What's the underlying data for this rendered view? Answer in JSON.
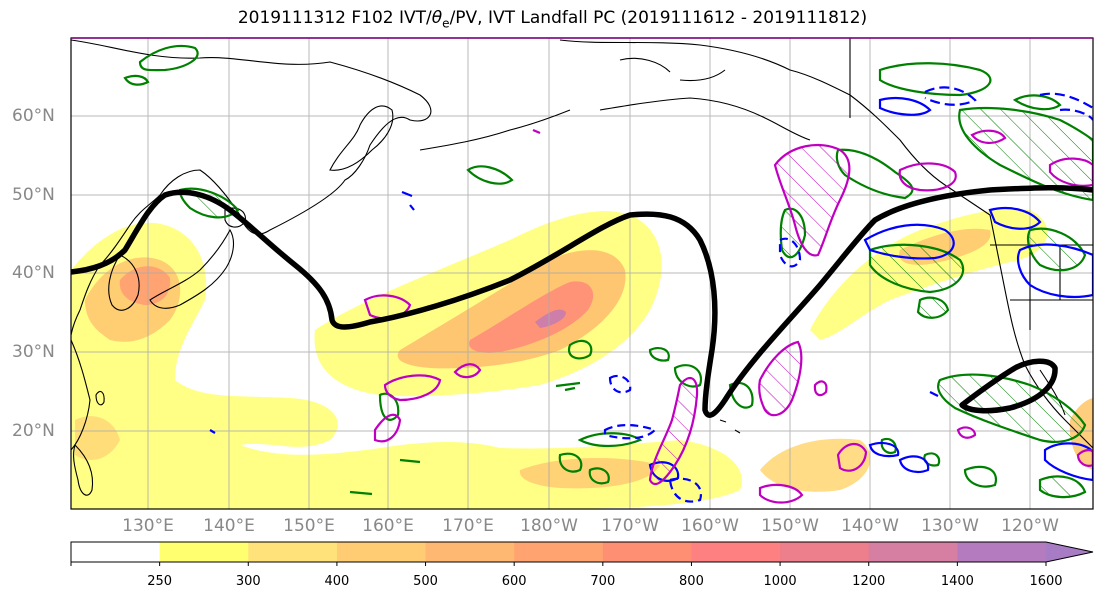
{
  "title_main": "2019111312 F102 IVT/",
  "title_theta": "θ",
  "title_sub": "e",
  "title_rest": "/PV, IVT Landfall PC (2019111612 - 2019111812)",
  "lat_labels": [
    "60°N",
    "50°N",
    "40°N",
    "30°N",
    "20°N"
  ],
  "lon_labels": [
    "130°E",
    "140°E",
    "150°E",
    "160°E",
    "170°E",
    "180°W",
    "170°W",
    "160°W",
    "150°W",
    "140°W",
    "130°W",
    "120°W"
  ],
  "colorbar": {
    "levels": [
      "250",
      "300",
      "400",
      "500",
      "600",
      "700",
      "800",
      "1000",
      "1200",
      "1400",
      "1600"
    ],
    "colors": [
      "#ffffff",
      "#ffff70",
      "#ffe37a",
      "#ffcb73",
      "#ffb872",
      "#ffa470",
      "#ff8f73",
      "#ff8080",
      "#ec7f8b",
      "#d77ea3",
      "#b47cbf",
      "#a77cc5"
    ]
  },
  "colors": {
    "theta_contour": "#008000",
    "pv_contour": "#0000ff",
    "landfall_contour": "#c000c0",
    "jet_line": "#000000",
    "coast": "#000000",
    "grid": "#aaaaaa"
  }
}
